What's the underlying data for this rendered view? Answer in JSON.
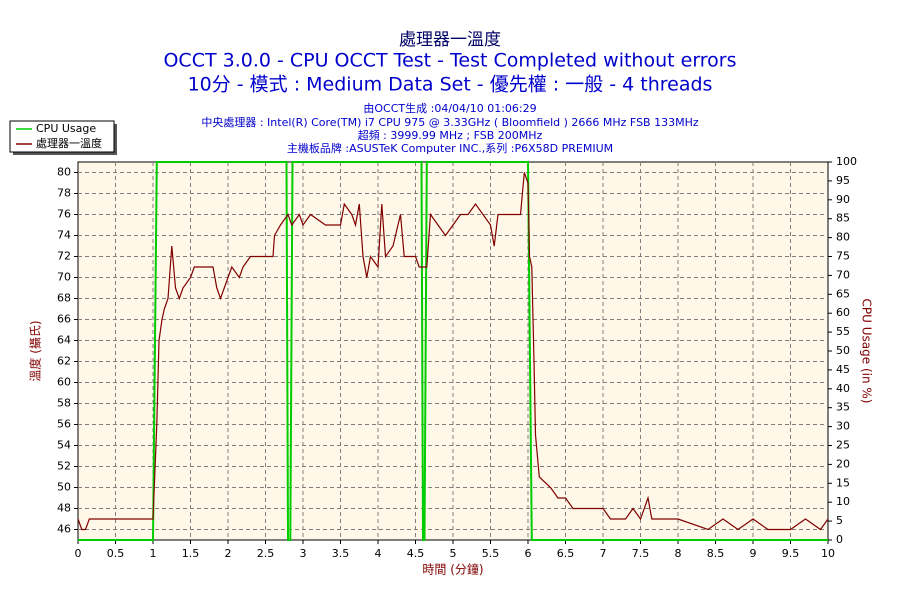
{
  "chart_data": {
    "type": "line",
    "title": "處理器一溫度",
    "subtitle": [
      "OCCT 3.0.0 - CPU OCCT Test - Test Completed without errors",
      "10分 - 模式 : Medium Data Set - 優先權 : 一般 - 4 threads"
    ],
    "annotations": [
      "由OCCT生成 :04/04/10 01:06:29",
      "中央處理器 : Intel(R) Core(TM) i7 CPU 975 @ 3.33GHz ( Bloomfield ) 2666 MHz FSB 133MHz",
      "超頻 : 3999.99 MHz ; FSB 200MHz",
      "主機板品牌 :ASUSTeK Computer INC.,系列 :P6X58D PREMIUM"
    ],
    "xlabel": "時間 (分鐘)",
    "ylabel": "溫度 (攝氏)",
    "y2label": "CPU Usage (in %)",
    "xlim": [
      0,
      10
    ],
    "xticks": [
      0,
      0.5,
      1,
      1.5,
      2,
      2.5,
      3,
      3.5,
      4,
      4.5,
      5,
      5.5,
      6,
      6.5,
      7,
      7.5,
      8,
      8.5,
      9,
      9.5,
      10
    ],
    "ylim": [
      45,
      81
    ],
    "yticks": [
      46,
      48,
      50,
      52,
      54,
      56,
      58,
      60,
      62,
      64,
      66,
      68,
      70,
      72,
      74,
      76,
      78,
      80
    ],
    "y2lim": [
      0,
      100
    ],
    "y2ticks": [
      0,
      5,
      10,
      15,
      20,
      25,
      30,
      35,
      40,
      45,
      50,
      55,
      60,
      65,
      70,
      75,
      80,
      85,
      90,
      95,
      100
    ],
    "grid": true,
    "series": [
      {
        "name": "CPU Usage",
        "color": "#00cc00",
        "axis": "y2",
        "x": [
          0,
          1.0,
          1.05,
          2.78,
          2.8,
          2.83,
          2.86,
          4.58,
          4.6,
          4.62,
          4.65,
          6.0,
          6.05,
          10
        ],
        "values": [
          0,
          0,
          100,
          100,
          0,
          0,
          100,
          100,
          0,
          0,
          100,
          100,
          0,
          0
        ]
      },
      {
        "name": "處理器一溫度",
        "color": "#800000",
        "x": [
          0,
          0.05,
          0.1,
          0.15,
          1.0,
          1.05,
          1.08,
          1.12,
          1.15,
          1.2,
          1.25,
          1.3,
          1.35,
          1.4,
          1.5,
          1.55,
          1.8,
          1.85,
          1.9,
          2.0,
          2.05,
          2.15,
          2.2,
          2.3,
          2.6,
          2.62,
          2.7,
          2.8,
          2.85,
          2.95,
          3.0,
          3.1,
          3.3,
          3.5,
          3.55,
          3.65,
          3.7,
          3.75,
          3.8,
          3.85,
          3.9,
          4.0,
          4.05,
          4.1,
          4.2,
          4.3,
          4.35,
          4.5,
          4.55,
          4.65,
          4.7,
          4.8,
          4.9,
          5.0,
          5.1,
          5.2,
          5.3,
          5.4,
          5.5,
          5.55,
          5.6,
          5.8,
          5.9,
          5.95,
          6.0,
          6.02,
          6.05,
          6.08,
          6.1,
          6.15,
          6.3,
          6.4,
          6.5,
          6.6,
          7.0,
          7.1,
          7.3,
          7.4,
          7.5,
          7.6,
          7.65,
          8.0,
          8.4,
          8.6,
          8.8,
          9.0,
          9.2,
          9.5,
          9.7,
          9.9,
          10.0
        ],
        "values": [
          47,
          46,
          46,
          47,
          47,
          56,
          64,
          66,
          67,
          68,
          73,
          69,
          68,
          69,
          70,
          71,
          71,
          69,
          68,
          70,
          71,
          70,
          71,
          72,
          72,
          74,
          75,
          76,
          75,
          76,
          75,
          76,
          75,
          75,
          77,
          76,
          75,
          77,
          72,
          70,
          72,
          71,
          77,
          72,
          73,
          76,
          72,
          72,
          71,
          71,
          76,
          75,
          74,
          75,
          76,
          76,
          77,
          76,
          75,
          73,
          76,
          76,
          76,
          80,
          79,
          72,
          71,
          62,
          55,
          51,
          50,
          49,
          49,
          48,
          48,
          47,
          47,
          48,
          47,
          49,
          47,
          47,
          46,
          47,
          46,
          47,
          46,
          46,
          47,
          46,
          47
        ]
      }
    ]
  }
}
